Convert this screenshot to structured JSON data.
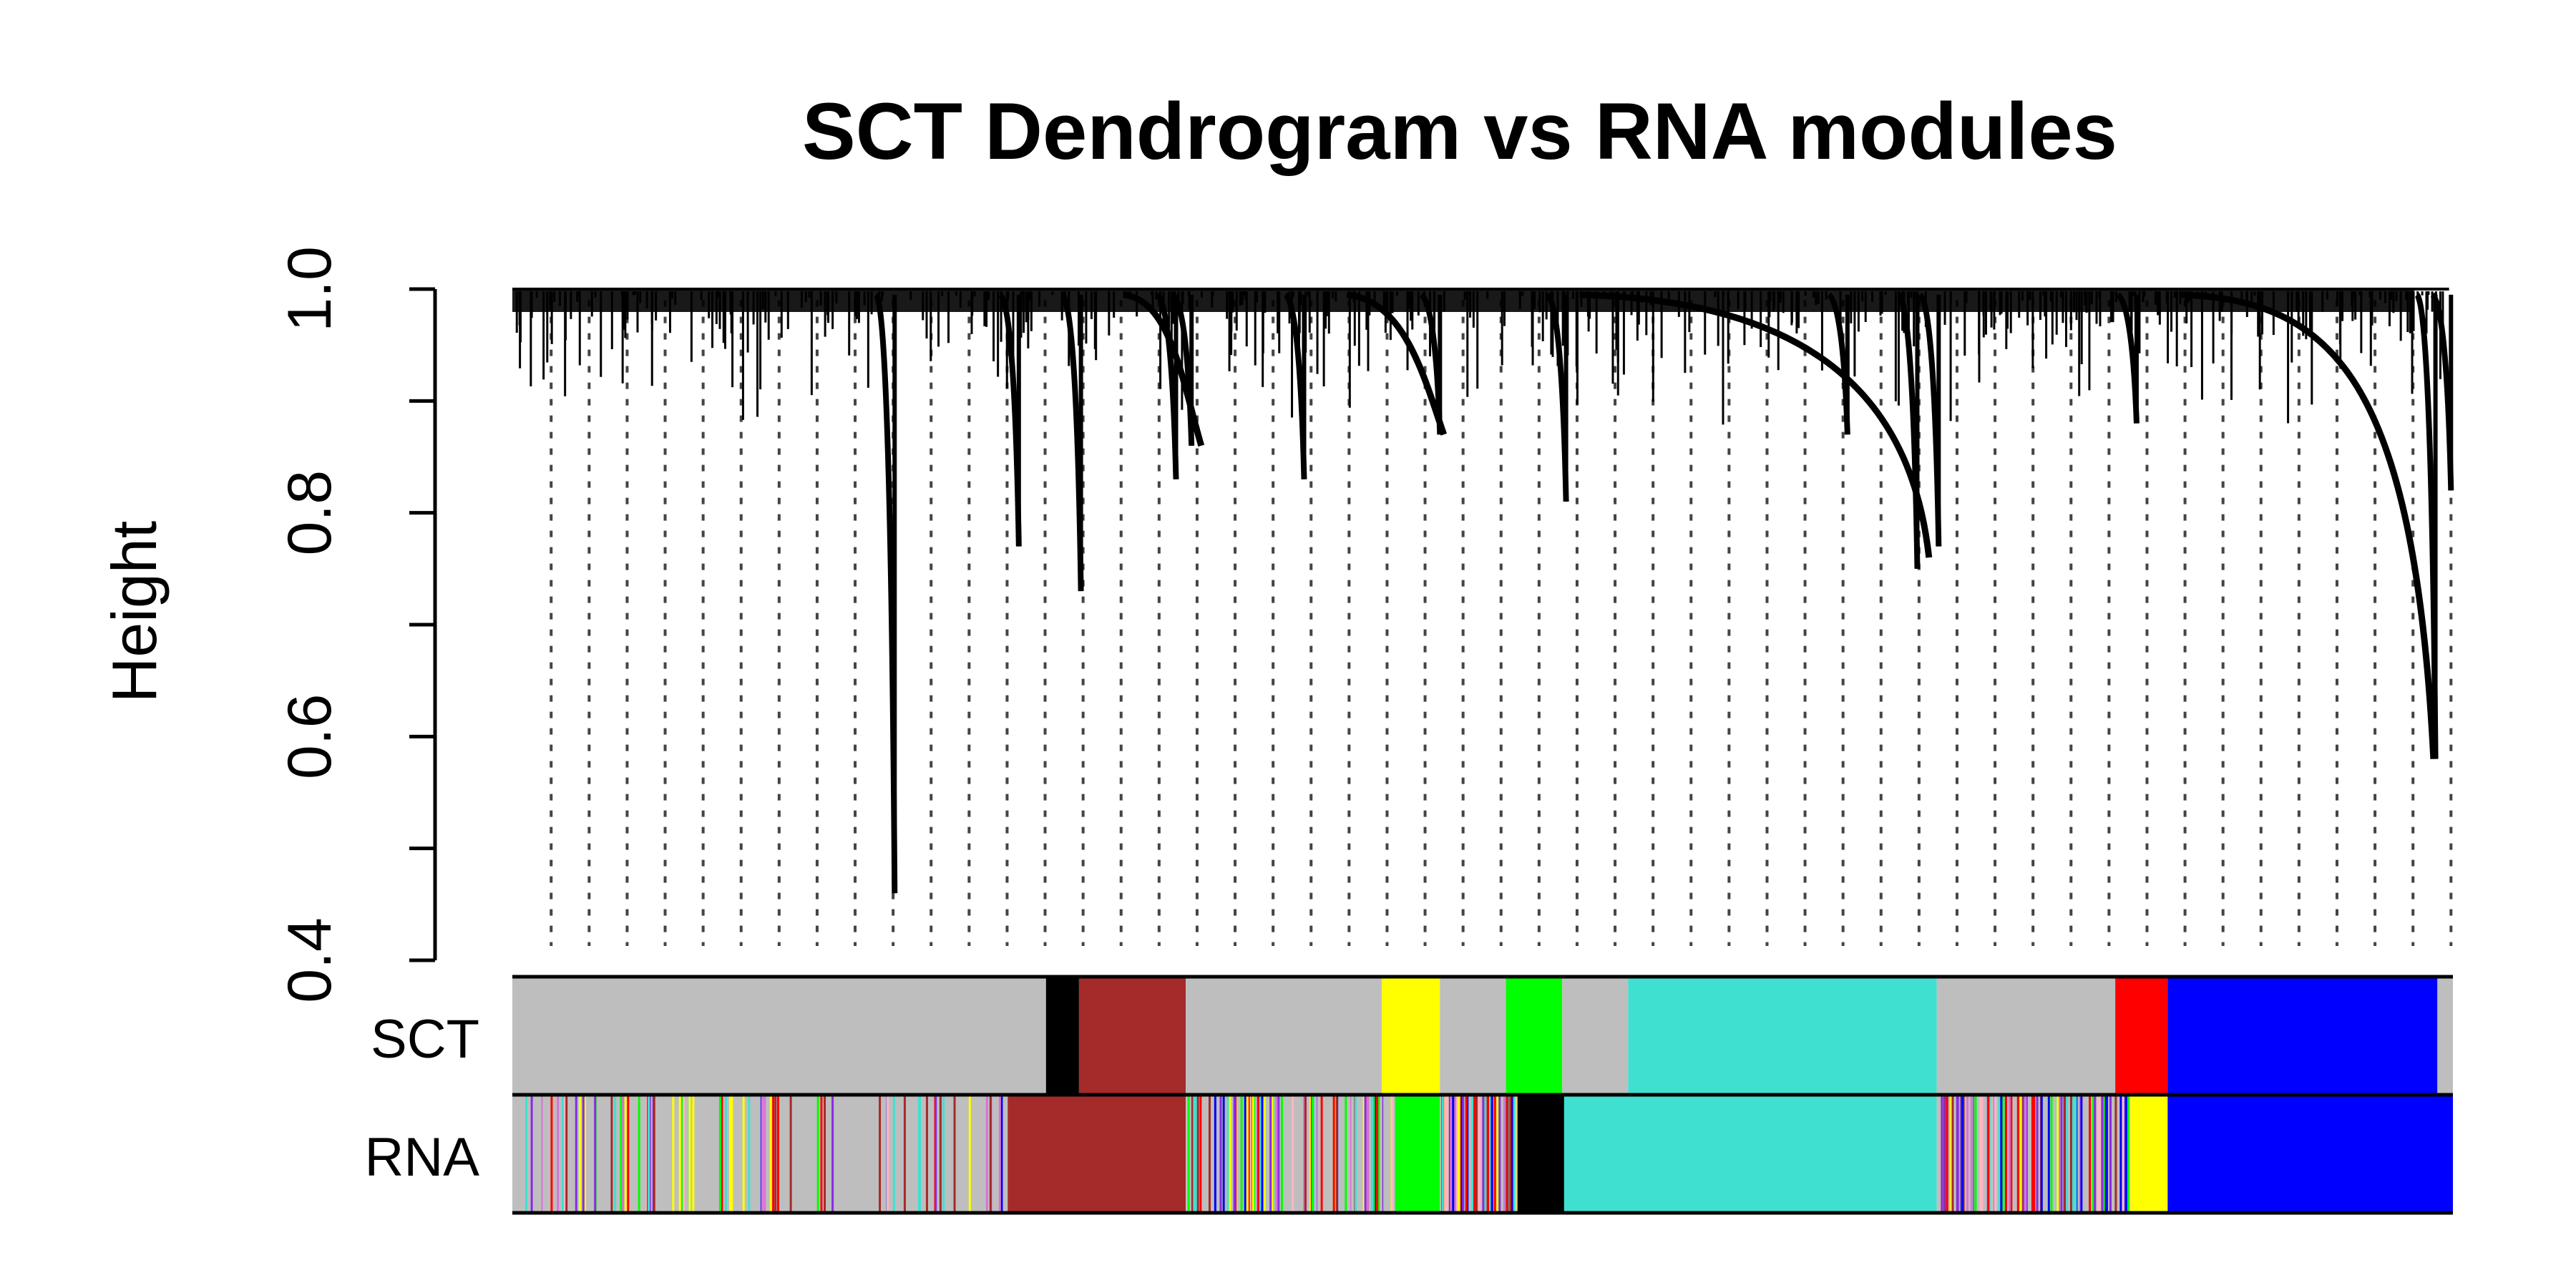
{
  "chart_data": {
    "type": "dendrogram",
    "title": "SCT Dendrogram vs RNA modules",
    "ylabel": "Height",
    "ylim": [
      0.4,
      1.0
    ],
    "y_ticks": [
      {
        "value": 0.4,
        "label": "0.4"
      },
      {
        "value": 0.6,
        "label": "0.6"
      },
      {
        "value": 0.8,
        "label": "0.8"
      },
      {
        "value": 1.0,
        "label": "1.0"
      }
    ],
    "y_minor_ticks": [
      0.5,
      0.7,
      0.9
    ],
    "grid": "dotted vertical guide lines",
    "color_rows": [
      {
        "label": "SCT",
        "segments": [
          {
            "module": "grey",
            "color": "#BEBEBE",
            "start": 0.0,
            "end": 0.275
          },
          {
            "module": "black",
            "color": "#000000",
            "start": 0.275,
            "end": 0.292
          },
          {
            "module": "brown",
            "color": "#A52A2A",
            "start": 0.292,
            "end": 0.347
          },
          {
            "module": "grey",
            "color": "#BEBEBE",
            "start": 0.347,
            "end": 0.448
          },
          {
            "module": "yellow",
            "color": "#FFFF00",
            "start": 0.448,
            "end": 0.478
          },
          {
            "module": "grey",
            "color": "#BEBEBE",
            "start": 0.478,
            "end": 0.512
          },
          {
            "module": "green",
            "color": "#00FF00",
            "start": 0.512,
            "end": 0.541
          },
          {
            "module": "grey",
            "color": "#BEBEBE",
            "start": 0.541,
            "end": 0.575
          },
          {
            "module": "turquoise",
            "color": "#40E0D0",
            "start": 0.575,
            "end": 0.734
          },
          {
            "module": "grey",
            "color": "#BEBEBE",
            "start": 0.734,
            "end": 0.826
          },
          {
            "module": "red",
            "color": "#FF0000",
            "start": 0.826,
            "end": 0.853
          },
          {
            "module": "blue",
            "color": "#0000FF",
            "start": 0.853,
            "end": 0.992
          },
          {
            "module": "grey",
            "color": "#BEBEBE",
            "start": 0.992,
            "end": 1.0
          }
        ]
      },
      {
        "label": "RNA",
        "segments": [
          {
            "module": "mixed",
            "color": "#BEBEBE",
            "start": 0.0,
            "end": 0.255
          },
          {
            "module": "brown",
            "color": "#A52A2A",
            "start": 0.255,
            "end": 0.347
          },
          {
            "module": "mixed",
            "color": "#BEBEBE",
            "start": 0.347,
            "end": 0.455
          },
          {
            "module": "green",
            "color": "#00FF00",
            "start": 0.455,
            "end": 0.478
          },
          {
            "module": "mixed",
            "color": "#BEBEBE",
            "start": 0.478,
            "end": 0.518
          },
          {
            "module": "black",
            "color": "#000000",
            "start": 0.518,
            "end": 0.542
          },
          {
            "module": "turquoise",
            "color": "#40E0D0",
            "start": 0.542,
            "end": 0.734
          },
          {
            "module": "mixed",
            "color": "#BEBEBE",
            "start": 0.734,
            "end": 0.833
          },
          {
            "module": "yellow",
            "color": "#FFFF00",
            "start": 0.833,
            "end": 0.853
          },
          {
            "module": "blue",
            "color": "#0000FF",
            "start": 0.853,
            "end": 1.0
          }
        ]
      }
    ],
    "dendrogram_branches": [
      {
        "x": 0.197,
        "height": 0.46
      },
      {
        "x": 0.261,
        "height": 0.77
      },
      {
        "x": 0.293,
        "height": 0.73
      },
      {
        "x": 0.342,
        "height": 0.83
      },
      {
        "x": 0.35,
        "height": 0.86
      },
      {
        "x": 0.408,
        "height": 0.83
      },
      {
        "x": 0.478,
        "height": 0.87
      },
      {
        "x": 0.543,
        "height": 0.81
      },
      {
        "x": 0.688,
        "height": 0.87
      },
      {
        "x": 0.724,
        "height": 0.75
      },
      {
        "x": 0.735,
        "height": 0.77
      },
      {
        "x": 0.837,
        "height": 0.88
      },
      {
        "x": 0.991,
        "height": 0.58
      },
      {
        "x": 0.999,
        "height": 0.82
      }
    ]
  }
}
